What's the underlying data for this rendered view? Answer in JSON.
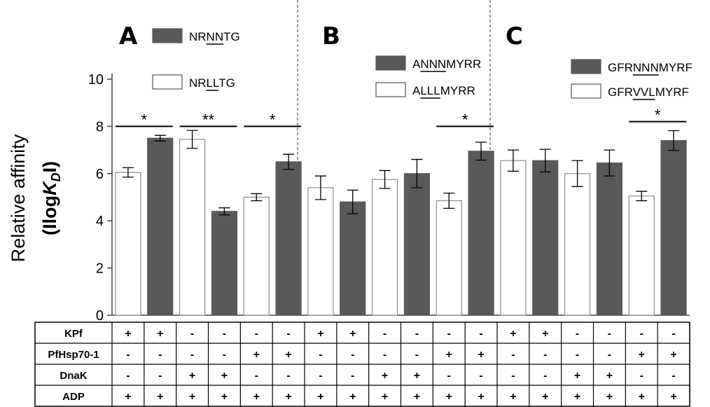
{
  "chart_data": {
    "type": "bar",
    "ylabel": "Relative affinity",
    "ylabel2": {
      "prefix": "(Ilog",
      "italic": "K",
      "sub": "D",
      "suffix": "I)"
    },
    "ylim": [
      0,
      10
    ],
    "yticks": [
      "0",
      "2",
      "4",
      "6",
      "8",
      "10"
    ],
    "colors": {
      "white": "#ffffff",
      "dark": "#595959",
      "stroke": "#8c8c8c"
    },
    "values": [
      6.05,
      7.5,
      7.45,
      4.4,
      5.0,
      6.5,
      5.4,
      4.8,
      5.75,
      6.0,
      4.85,
      6.95,
      6.55,
      6.55,
      6.0,
      6.45,
      5.05,
      7.4
    ],
    "errors": [
      0.2,
      0.12,
      0.38,
      0.15,
      0.15,
      0.32,
      0.5,
      0.5,
      0.38,
      0.6,
      0.32,
      0.38,
      0.45,
      0.48,
      0.55,
      0.55,
      0.2,
      0.42
    ],
    "fills": [
      "white",
      "dark",
      "white",
      "dark",
      "white",
      "dark",
      "white",
      "dark",
      "white",
      "dark",
      "white",
      "dark",
      "white",
      "dark",
      "white",
      "dark",
      "white",
      "dark"
    ],
    "panels": [
      {
        "label": "A",
        "legend": [
          {
            "text": "NRNNTG",
            "fill": "dark",
            "underline": [
              2,
              4
            ]
          },
          {
            "text": "NRLLTG",
            "fill": "white",
            "underline": [
              2,
              4
            ]
          }
        ]
      },
      {
        "label": "B",
        "legend": [
          {
            "text": "ANNNMYRR",
            "fill": "dark",
            "underline": [
              1,
              4
            ]
          },
          {
            "text": "ALLLMYRR",
            "fill": "white",
            "underline": [
              1,
              4
            ]
          }
        ]
      },
      {
        "label": "C",
        "legend": [
          {
            "text": "GFRNNNMYRF",
            "fill": "dark",
            "underline": [
              3,
              6
            ]
          },
          {
            "text": "GFRVVLMYRF",
            "fill": "white",
            "underline": [
              3,
              6
            ]
          }
        ]
      }
    ],
    "significance": [
      {
        "from": 0,
        "to": 1,
        "y": 8.0,
        "label": "*"
      },
      {
        "from": 2,
        "to": 3,
        "y": 8.0,
        "label": "**"
      },
      {
        "from": 4,
        "to": 5,
        "y": 8.0,
        "label": "*"
      },
      {
        "from": 10,
        "to": 11,
        "y": 8.0,
        "label": "*"
      },
      {
        "from": 16,
        "to": 17,
        "y": 8.2,
        "label": "*"
      }
    ],
    "table": [
      {
        "label": "KPf",
        "cells": [
          "+",
          "+",
          "-",
          "-",
          "-",
          "-",
          "+",
          "+",
          "-",
          "-",
          "-",
          "-",
          "+",
          "+",
          "-",
          "-",
          "-",
          "-"
        ]
      },
      {
        "label": "PfHsp70-1",
        "cells": [
          "-",
          "-",
          "-",
          "-",
          "+",
          "+",
          "-",
          "-",
          "-",
          "-",
          "+",
          "+",
          "-",
          "-",
          "-",
          "-",
          "+",
          "+"
        ]
      },
      {
        "label": "DnaK",
        "cells": [
          "-",
          "-",
          "+",
          "+",
          "-",
          "-",
          "-",
          "-",
          "+",
          "+",
          "-",
          "-",
          "-",
          "-",
          "+",
          "+",
          "-",
          "-"
        ]
      },
      {
        "label": "ADP",
        "cells": [
          "+",
          "+",
          "+",
          "+",
          "+",
          "+",
          "+",
          "+",
          "+",
          "+",
          "+",
          "+",
          "+",
          "+",
          "+",
          "+",
          "+",
          "+"
        ]
      }
    ]
  }
}
